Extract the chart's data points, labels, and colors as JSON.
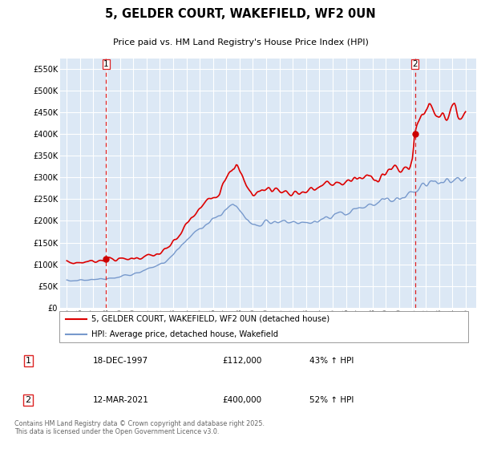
{
  "title": "5, GELDER COURT, WAKEFIELD, WF2 0UN",
  "subtitle": "Price paid vs. HM Land Registry's House Price Index (HPI)",
  "legend_line1": "5, GELDER COURT, WAKEFIELD, WF2 0UN (detached house)",
  "legend_line2": "HPI: Average price, detached house, Wakefield",
  "transaction1_date": "18-DEC-1997",
  "transaction1_price": "£112,000",
  "transaction1_hpi": "43% ↑ HPI",
  "transaction2_date": "12-MAR-2021",
  "transaction2_price": "£400,000",
  "transaction2_hpi": "52% ↑ HPI",
  "footnote": "Contains HM Land Registry data © Crown copyright and database right 2025.\nThis data is licensed under the Open Government Licence v3.0.",
  "red_color": "#dd0000",
  "blue_color": "#7799cc",
  "dashed_color": "#dd2222",
  "marker_color": "#cc0000",
  "background_color": "#ffffff",
  "chart_bg_color": "#dce8f5",
  "grid_color": "#ffffff",
  "ylim": [
    0,
    575000
  ],
  "yticks": [
    0,
    50000,
    100000,
    150000,
    200000,
    250000,
    300000,
    350000,
    400000,
    450000,
    500000,
    550000
  ],
  "ytick_labels": [
    "£0",
    "£50K",
    "£100K",
    "£150K",
    "£200K",
    "£250K",
    "£300K",
    "£350K",
    "£400K",
    "£450K",
    "£500K",
    "£550K"
  ],
  "transaction1_x": 1997.96,
  "transaction1_y": 112000,
  "transaction2_x": 2021.19,
  "transaction2_y": 400000,
  "xlim_left": 1994.5,
  "xlim_right": 2025.8
}
